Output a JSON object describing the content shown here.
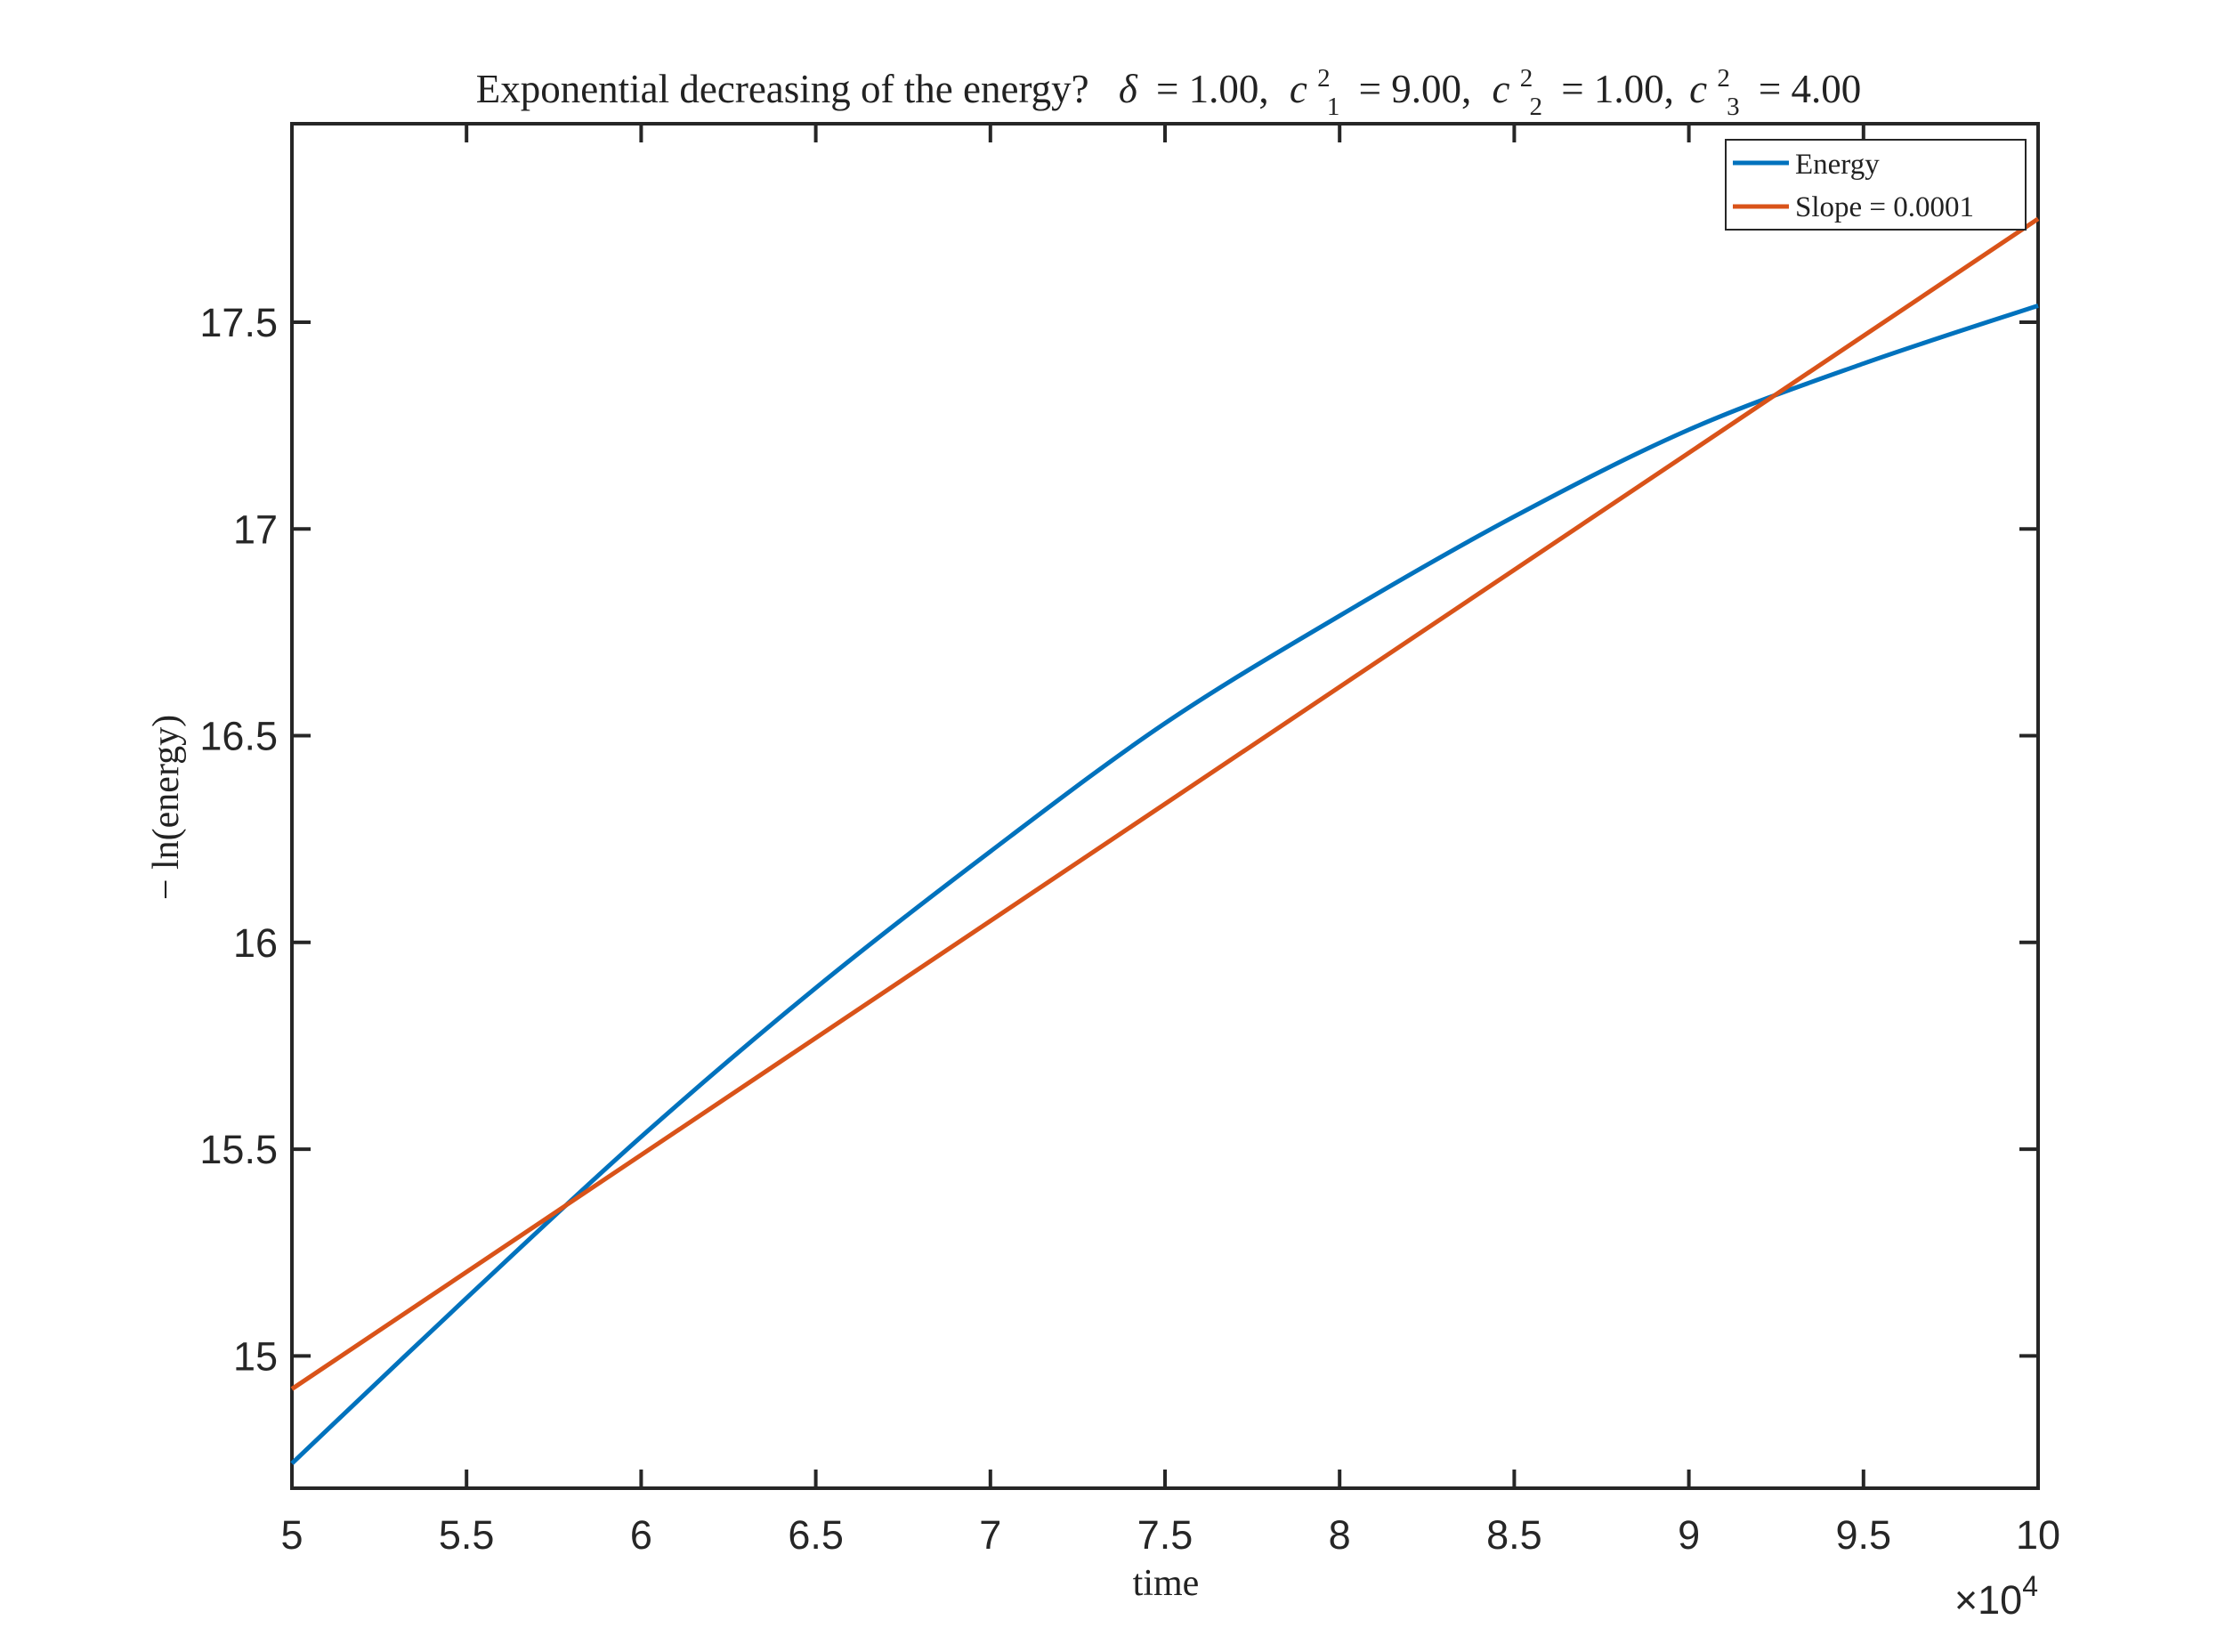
{
  "chart_data": {
    "type": "line",
    "title": "Exponential decreasing of the energy? δ = 1.00, c₁² = 9.00, c₂² = 1.00, c₃² = 4.00",
    "title_parts": {
      "lead": "Exponential decreasing of the energy?",
      "delta_sym": "δ",
      "delta_val": "= 1.00,",
      "c_sym": "c",
      "sup": "2",
      "c1_sub": "1",
      "c1_val": "= 9.00,",
      "c2_sub": "2",
      "c2_val": "= 1.00,",
      "c3_sub": "3",
      "c3_val": "= 4.00"
    },
    "xlabel": "time",
    "ylabel": "− ln(energy)",
    "x_exponent": {
      "times": "×10",
      "power": "4"
    },
    "xlim": [
      50000,
      100000
    ],
    "ylim": [
      14.68,
      17.98
    ],
    "x_ticks": [
      50000,
      55000,
      60000,
      65000,
      70000,
      75000,
      80000,
      85000,
      90000,
      95000,
      100000
    ],
    "x_tick_labels": [
      "5",
      "5.5",
      "6",
      "6.5",
      "7",
      "7.5",
      "8",
      "8.5",
      "9",
      "9.5",
      "10"
    ],
    "y_ticks": [
      15,
      15.5,
      16,
      16.5,
      17,
      17.5
    ],
    "y_tick_labels": [
      "15",
      "15.5",
      "16",
      "16.5",
      "17",
      "17.5"
    ],
    "grid": false,
    "legend_position": "top-right",
    "series": [
      {
        "name": "Energy",
        "color": "#0072BD",
        "x": [
          50000,
          55000,
          60000,
          65000,
          70000,
          75000,
          80000,
          85000,
          90000,
          95000,
          100000
        ],
        "y": [
          14.74,
          15.14,
          15.53,
          15.89,
          16.22,
          16.53,
          16.79,
          17.03,
          17.24,
          17.4,
          17.54
        ]
      },
      {
        "name": "Slope = 0.0001",
        "color": "#D95319",
        "x": [
          50000,
          100000
        ],
        "y": [
          14.92,
          17.75
        ]
      }
    ]
  }
}
